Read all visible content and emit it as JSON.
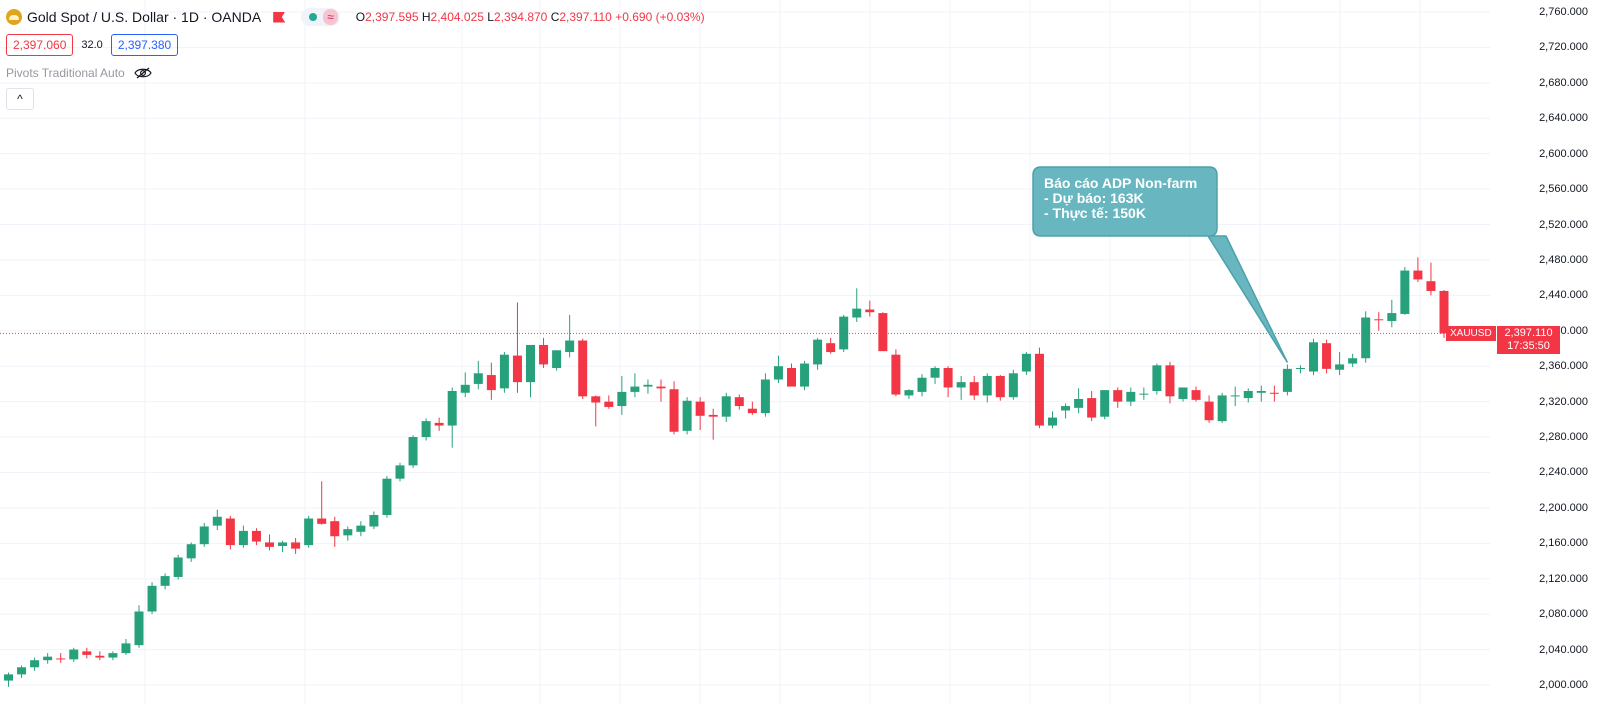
{
  "header": {
    "title": "Gold Spot / U.S. Dollar · 1D · OANDA",
    "wave_glyph": "≈",
    "ohlc": {
      "o_label": "O",
      "o": "2,397.595",
      "h_label": "H",
      "h": "2,404.025",
      "l_label": "L",
      "l": "2,394.870",
      "c_label": "C",
      "c": "2,397.110",
      "change": "+0.690 (+0.03%)"
    },
    "sell_price": "2,397.060",
    "spread": "32.0",
    "buy_price": "2,397.380",
    "indicator": "Pivots Traditional Auto",
    "collapse_glyph": "^"
  },
  "price_tag": {
    "symbol": "XAUUSD",
    "price": "2,397.110",
    "countdown": "17:35:50"
  },
  "annotation": {
    "line1": "Báo cáo ADP Non-farm",
    "line2": "- Dự báo: 163K",
    "line3": "- Thực tế: 150K",
    "fill": "#67b6c0",
    "border": "#4ea0aa"
  },
  "colors": {
    "up": "#26a17b",
    "down": "#f23645",
    "grid": "#f0f3fa"
  },
  "chart_data": {
    "type": "candlestick",
    "ylim": [
      1995,
      2768
    ],
    "yticks": [
      2000,
      2040,
      2080,
      2120,
      2160,
      2200,
      2240,
      2280,
      2320,
      2360,
      2400,
      2440,
      2480,
      2520,
      2560,
      2600,
      2640,
      2680,
      2720,
      2760
    ],
    "ytick_labels": [
      "2,000.000",
      "2,040.000",
      "2,080.000",
      "2,120.000",
      "2,160.000",
      "2,200.000",
      "2,240.000",
      "2,280.000",
      "2,320.000",
      "2,360.000",
      "2,400.000",
      "2,440.000",
      "2,480.000",
      "2,520.000",
      "2,560.000",
      "2,600.000",
      "2,640.000",
      "2,680.000",
      "2,720.000",
      "2,760.000"
    ],
    "last_price": 2397.11,
    "annotated_candle_index": 98,
    "candles": [
      {
        "o": 2005,
        "h": 2014,
        "l": 1998,
        "c": 2012
      },
      {
        "o": 2012,
        "h": 2022,
        "l": 2008,
        "c": 2020
      },
      {
        "o": 2020,
        "h": 2031,
        "l": 2016,
        "c": 2028
      },
      {
        "o": 2028,
        "h": 2036,
        "l": 2024,
        "c": 2032
      },
      {
        "o": 2030,
        "h": 2036,
        "l": 2025,
        "c": 2029
      },
      {
        "o": 2029,
        "h": 2042,
        "l": 2026,
        "c": 2040
      },
      {
        "o": 2038,
        "h": 2042,
        "l": 2030,
        "c": 2034
      },
      {
        "o": 2033,
        "h": 2038,
        "l": 2028,
        "c": 2031
      },
      {
        "o": 2031,
        "h": 2038,
        "l": 2028,
        "c": 2036
      },
      {
        "o": 2036,
        "h": 2052,
        "l": 2034,
        "c": 2047
      },
      {
        "o": 2045,
        "h": 2090,
        "l": 2042,
        "c": 2083
      },
      {
        "o": 2083,
        "h": 2116,
        "l": 2080,
        "c": 2112
      },
      {
        "o": 2112,
        "h": 2126,
        "l": 2108,
        "c": 2123
      },
      {
        "o": 2122,
        "h": 2147,
        "l": 2119,
        "c": 2144
      },
      {
        "o": 2143,
        "h": 2161,
        "l": 2139,
        "c": 2159
      },
      {
        "o": 2159,
        "h": 2183,
        "l": 2156,
        "c": 2179
      },
      {
        "o": 2180,
        "h": 2198,
        "l": 2175,
        "c": 2190
      },
      {
        "o": 2188,
        "h": 2191,
        "l": 2153,
        "c": 2158
      },
      {
        "o": 2158,
        "h": 2180,
        "l": 2155,
        "c": 2174
      },
      {
        "o": 2174,
        "h": 2177,
        "l": 2158,
        "c": 2162
      },
      {
        "o": 2161,
        "h": 2170,
        "l": 2152,
        "c": 2156
      },
      {
        "o": 2157,
        "h": 2163,
        "l": 2150,
        "c": 2161
      },
      {
        "o": 2161,
        "h": 2166,
        "l": 2148,
        "c": 2154
      },
      {
        "o": 2158,
        "h": 2191,
        "l": 2155,
        "c": 2188
      },
      {
        "o": 2188,
        "h": 2230,
        "l": 2181,
        "c": 2182
      },
      {
        "o": 2185,
        "h": 2190,
        "l": 2156,
        "c": 2168
      },
      {
        "o": 2169,
        "h": 2179,
        "l": 2163,
        "c": 2176
      },
      {
        "o": 2173,
        "h": 2185,
        "l": 2168,
        "c": 2180
      },
      {
        "o": 2179,
        "h": 2196,
        "l": 2176,
        "c": 2192
      },
      {
        "o": 2192,
        "h": 2236,
        "l": 2189,
        "c": 2233
      },
      {
        "o": 2233,
        "h": 2251,
        "l": 2230,
        "c": 2248
      },
      {
        "o": 2248,
        "h": 2282,
        "l": 2245,
        "c": 2280
      },
      {
        "o": 2280,
        "h": 2301,
        "l": 2276,
        "c": 2298
      },
      {
        "o": 2296,
        "h": 2302,
        "l": 2287,
        "c": 2293
      },
      {
        "o": 2293,
        "h": 2336,
        "l": 2268,
        "c": 2332
      },
      {
        "o": 2330,
        "h": 2353,
        "l": 2325,
        "c": 2339
      },
      {
        "o": 2340,
        "h": 2366,
        "l": 2334,
        "c": 2352
      },
      {
        "o": 2350,
        "h": 2364,
        "l": 2322,
        "c": 2333
      },
      {
        "o": 2335,
        "h": 2376,
        "l": 2330,
        "c": 2373
      },
      {
        "o": 2372,
        "h": 2432,
        "l": 2330,
        "c": 2342
      },
      {
        "o": 2342,
        "h": 2384,
        "l": 2325,
        "c": 2384
      },
      {
        "o": 2384,
        "h": 2392,
        "l": 2358,
        "c": 2362
      },
      {
        "o": 2358,
        "h": 2375,
        "l": 2355,
        "c": 2378
      },
      {
        "o": 2376,
        "h": 2418,
        "l": 2370,
        "c": 2389
      },
      {
        "o": 2389,
        "h": 2391,
        "l": 2323,
        "c": 2326
      },
      {
        "o": 2326,
        "h": 2327,
        "l": 2292,
        "c": 2319
      },
      {
        "o": 2320,
        "h": 2327,
        "l": 2312,
        "c": 2314
      },
      {
        "o": 2315,
        "h": 2349,
        "l": 2305,
        "c": 2331
      },
      {
        "o": 2331,
        "h": 2352,
        "l": 2325,
        "c": 2337
      },
      {
        "o": 2337,
        "h": 2345,
        "l": 2329,
        "c": 2339
      },
      {
        "o": 2337,
        "h": 2345,
        "l": 2320,
        "c": 2335
      },
      {
        "o": 2334,
        "h": 2343,
        "l": 2283,
        "c": 2286
      },
      {
        "o": 2287,
        "h": 2325,
        "l": 2283,
        "c": 2321
      },
      {
        "o": 2320,
        "h": 2325,
        "l": 2288,
        "c": 2304
      },
      {
        "o": 2305,
        "h": 2312,
        "l": 2277,
        "c": 2303
      },
      {
        "o": 2303,
        "h": 2330,
        "l": 2297,
        "c": 2326
      },
      {
        "o": 2325,
        "h": 2328,
        "l": 2311,
        "c": 2315
      },
      {
        "o": 2312,
        "h": 2320,
        "l": 2305,
        "c": 2307
      },
      {
        "o": 2307,
        "h": 2352,
        "l": 2303,
        "c": 2345
      },
      {
        "o": 2345,
        "h": 2372,
        "l": 2341,
        "c": 2360
      },
      {
        "o": 2358,
        "h": 2363,
        "l": 2338,
        "c": 2337
      },
      {
        "o": 2337,
        "h": 2366,
        "l": 2333,
        "c": 2363
      },
      {
        "o": 2362,
        "h": 2392,
        "l": 2356,
        "c": 2390
      },
      {
        "o": 2386,
        "h": 2392,
        "l": 2374,
        "c": 2376
      },
      {
        "o": 2379,
        "h": 2418,
        "l": 2376,
        "c": 2416
      },
      {
        "o": 2415,
        "h": 2448,
        "l": 2410,
        "c": 2425
      },
      {
        "o": 2424,
        "h": 2434,
        "l": 2416,
        "c": 2421
      },
      {
        "o": 2420,
        "h": 2421,
        "l": 2378,
        "c": 2377
      },
      {
        "o": 2373,
        "h": 2379,
        "l": 2326,
        "c": 2328
      },
      {
        "o": 2327,
        "h": 2334,
        "l": 2323,
        "c": 2333
      },
      {
        "o": 2331,
        "h": 2351,
        "l": 2326,
        "c": 2347
      },
      {
        "o": 2347,
        "h": 2360,
        "l": 2340,
        "c": 2358
      },
      {
        "o": 2358,
        "h": 2360,
        "l": 2325,
        "c": 2336
      },
      {
        "o": 2336,
        "h": 2349,
        "l": 2322,
        "c": 2342
      },
      {
        "o": 2342,
        "h": 2349,
        "l": 2322,
        "c": 2327
      },
      {
        "o": 2327,
        "h": 2352,
        "l": 2319,
        "c": 2349
      },
      {
        "o": 2349,
        "h": 2350,
        "l": 2321,
        "c": 2325
      },
      {
        "o": 2325,
        "h": 2356,
        "l": 2322,
        "c": 2352
      },
      {
        "o": 2354,
        "h": 2376,
        "l": 2350,
        "c": 2374
      },
      {
        "o": 2374,
        "h": 2381,
        "l": 2290,
        "c": 2293
      },
      {
        "o": 2293,
        "h": 2309,
        "l": 2290,
        "c": 2302
      },
      {
        "o": 2310,
        "h": 2318,
        "l": 2301,
        "c": 2315
      },
      {
        "o": 2313,
        "h": 2335,
        "l": 2307,
        "c": 2323
      },
      {
        "o": 2324,
        "h": 2332,
        "l": 2298,
        "c": 2302
      },
      {
        "o": 2303,
        "h": 2333,
        "l": 2300,
        "c": 2333
      },
      {
        "o": 2333,
        "h": 2336,
        "l": 2313,
        "c": 2320
      },
      {
        "o": 2320,
        "h": 2336,
        "l": 2315,
        "c": 2331
      },
      {
        "o": 2329,
        "h": 2336,
        "l": 2322,
        "c": 2329
      },
      {
        "o": 2332,
        "h": 2363,
        "l": 2328,
        "c": 2361
      },
      {
        "o": 2361,
        "h": 2365,
        "l": 2318,
        "c": 2326
      },
      {
        "o": 2323,
        "h": 2333,
        "l": 2320,
        "c": 2336
      },
      {
        "o": 2333,
        "h": 2337,
        "l": 2320,
        "c": 2322
      },
      {
        "o": 2320,
        "h": 2327,
        "l": 2296,
        "c": 2299
      },
      {
        "o": 2298,
        "h": 2330,
        "l": 2296,
        "c": 2327
      },
      {
        "o": 2327,
        "h": 2337,
        "l": 2315,
        "c": 2327
      },
      {
        "o": 2324,
        "h": 2335,
        "l": 2319,
        "c": 2332
      },
      {
        "o": 2330,
        "h": 2338,
        "l": 2320,
        "c": 2332
      },
      {
        "o": 2330,
        "h": 2338,
        "l": 2320,
        "c": 2329
      },
      {
        "o": 2331,
        "h": 2362,
        "l": 2327,
        "c": 2357
      },
      {
        "o": 2357,
        "h": 2361,
        "l": 2352,
        "c": 2358
      },
      {
        "o": 2354,
        "h": 2391,
        "l": 2350,
        "c": 2387
      },
      {
        "o": 2386,
        "h": 2390,
        "l": 2352,
        "c": 2357
      },
      {
        "o": 2356,
        "h": 2376,
        "l": 2350,
        "c": 2362
      },
      {
        "o": 2363,
        "h": 2374,
        "l": 2359,
        "c": 2369
      },
      {
        "o": 2369,
        "h": 2422,
        "l": 2364,
        "c": 2415
      },
      {
        "o": 2413,
        "h": 2421,
        "l": 2400,
        "c": 2412
      },
      {
        "o": 2411,
        "h": 2435,
        "l": 2404,
        "c": 2420
      },
      {
        "o": 2419,
        "h": 2472,
        "l": 2418,
        "c": 2468
      },
      {
        "o": 2468,
        "h": 2483,
        "l": 2455,
        "c": 2458
      },
      {
        "o": 2456,
        "h": 2477,
        "l": 2440,
        "c": 2445
      },
      {
        "o": 2445,
        "h": 2446,
        "l": 2392,
        "c": 2397
      },
      {
        "o": 2397,
        "h": 2404,
        "l": 2394,
        "c": 2397
      }
    ]
  }
}
